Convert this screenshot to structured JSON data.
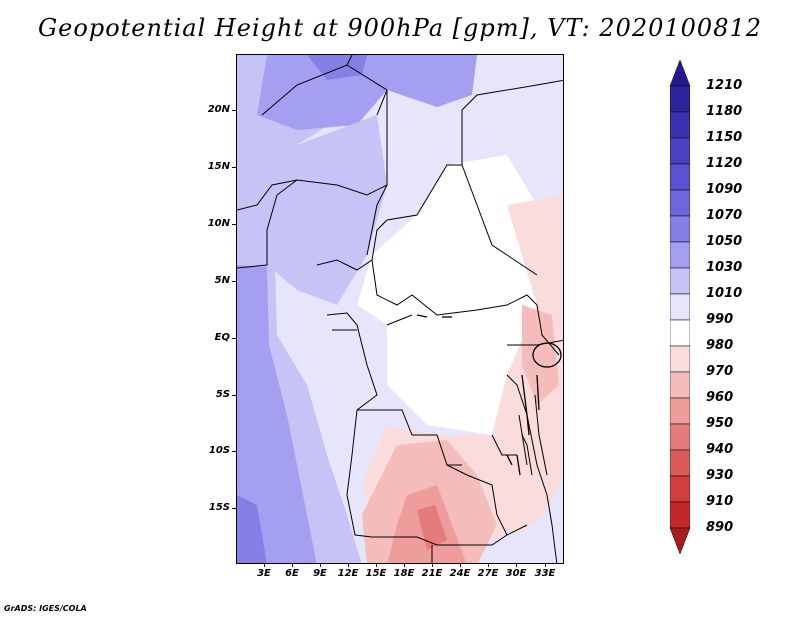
{
  "title": "Geopotential Height at 900hPa [gpm], VT: 2020100812",
  "footer": "GrADS: IGES/COLA",
  "axes": {
    "latitude_labels": [
      "20N",
      "15N",
      "10N",
      "5N",
      "EQ",
      "5S",
      "10S",
      "15S"
    ],
    "longitude_labels": [
      "3E",
      "6E",
      "9E",
      "12E",
      "15E",
      "18E",
      "21E",
      "24E",
      "27E",
      "30E",
      "33E"
    ]
  },
  "colorbar": {
    "labels": [
      "1210",
      "1180",
      "1150",
      "1120",
      "1090",
      "1070",
      "1050",
      "1030",
      "1010",
      "990",
      "980",
      "970",
      "960",
      "950",
      "940",
      "930",
      "910",
      "890"
    ],
    "colors": [
      "#241a8c",
      "#2e24a0",
      "#3a30b4",
      "#4a40c4",
      "#5a52d2",
      "#6e66dc",
      "#8680e6",
      "#a49ff0",
      "#c6c3f6",
      "#e6e5fb",
      "#ffffff",
      "#fbdcdc",
      "#f5bcbc",
      "#ee9c9c",
      "#e57b7b",
      "#dc5a5a",
      "#d03e3e",
      "#c22828",
      "#a81c1c"
    ]
  },
  "regions": [
    {
      "name": "deep-blue-north",
      "color": "#a49ff0"
    },
    {
      "name": "mid-blue",
      "color": "#c6c3f6"
    },
    {
      "name": "pale-blue",
      "color": "#e6e5fb"
    },
    {
      "name": "white-central",
      "color": "#ffffff"
    },
    {
      "name": "light-red-east",
      "color": "#fbdcdc"
    },
    {
      "name": "red-south",
      "color": "#f5bcbc"
    },
    {
      "name": "strong-red-south",
      "color": "#ee9c9c"
    }
  ]
}
